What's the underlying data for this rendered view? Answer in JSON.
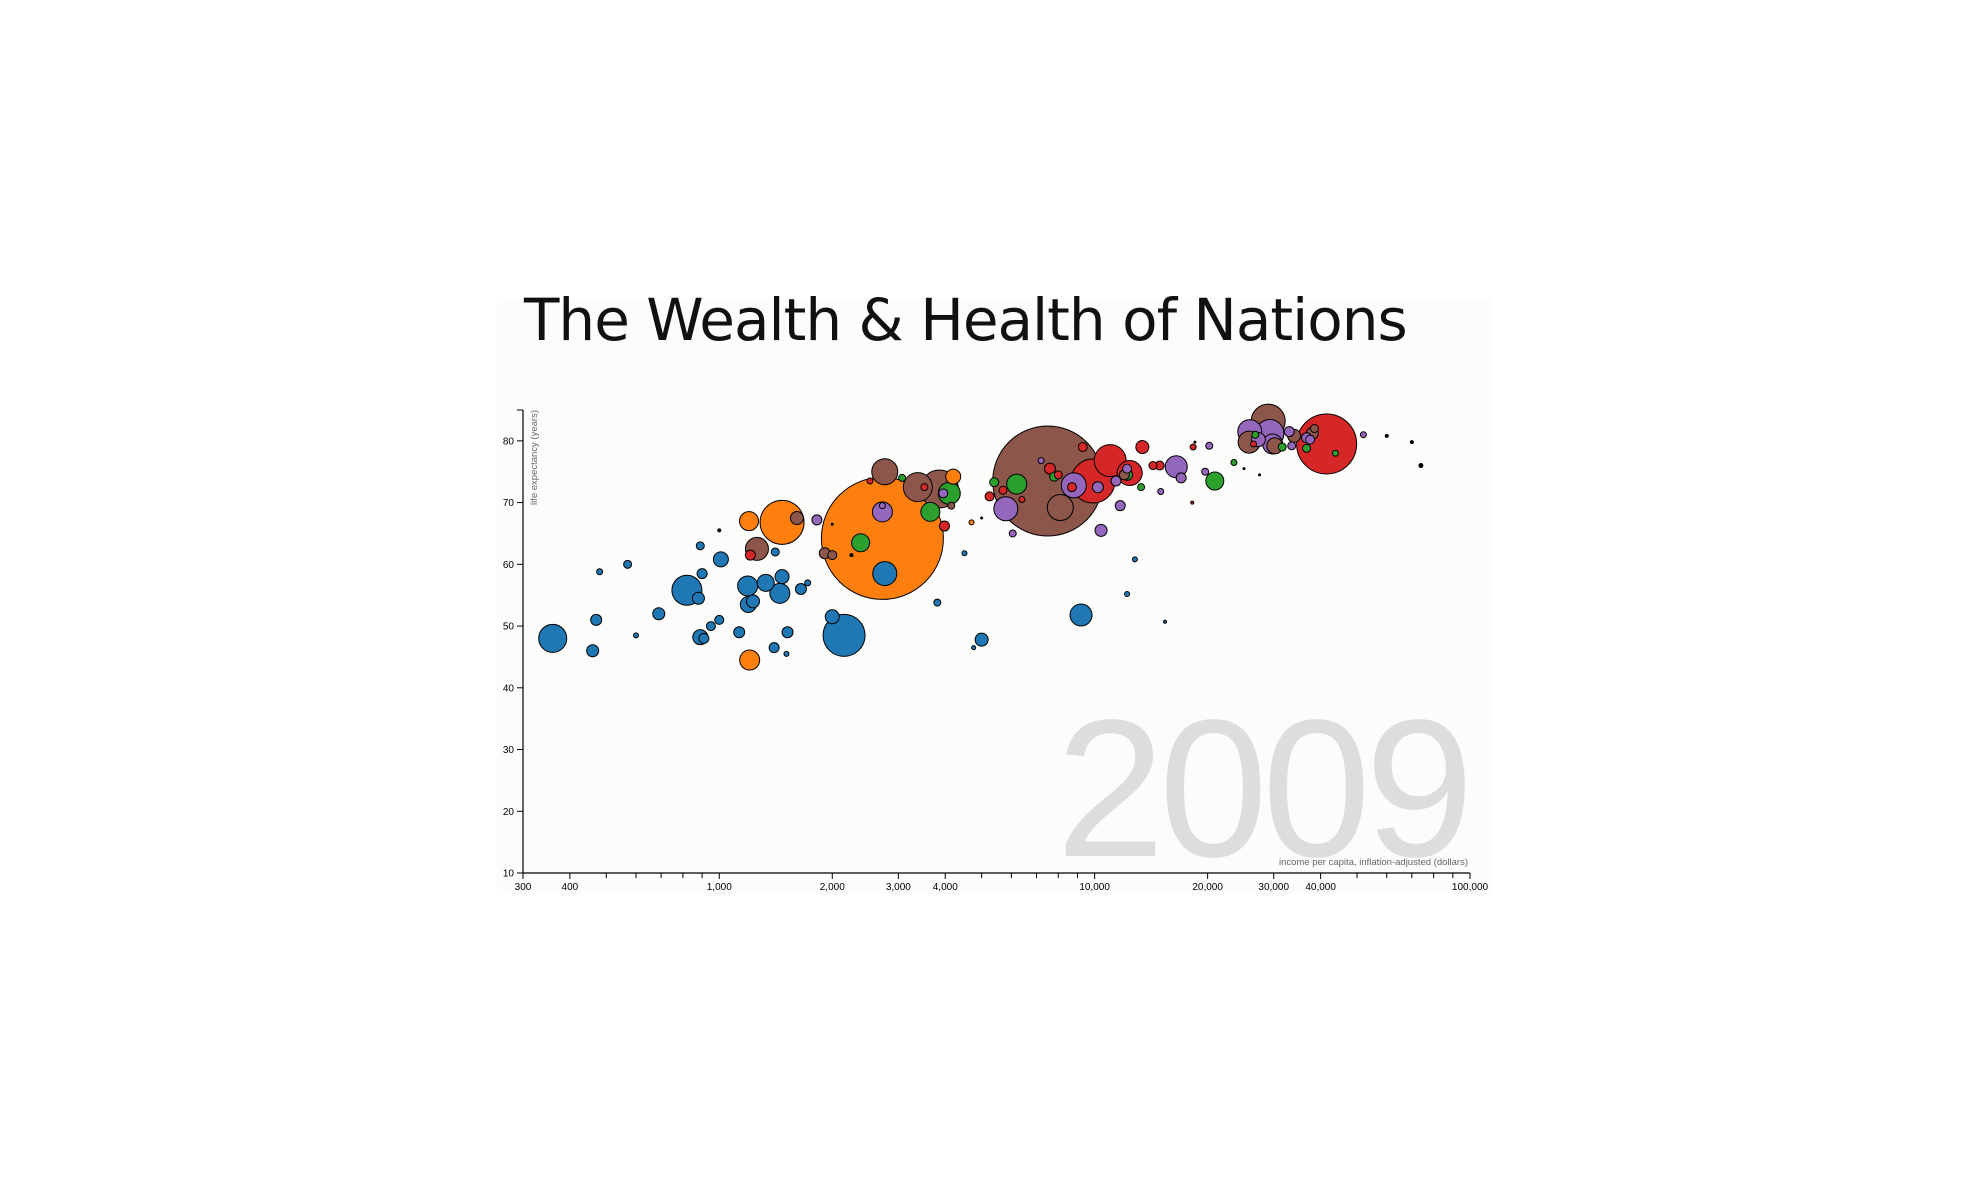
{
  "title": "The Wealth & Health of Nations",
  "chart_data": {
    "type": "scatter",
    "title": "The Wealth & Health of Nations",
    "xlabel": "income per capita, inflation-adjusted (dollars)",
    "ylabel": "life expectancy (years)",
    "x_scale": "log",
    "xlim": [
      300,
      100000
    ],
    "ylim": [
      10,
      85
    ],
    "year": "2009",
    "x_ticks": [
      300,
      400,
      1000,
      2000,
      3000,
      4000,
      10000,
      20000,
      30000,
      40000,
      100000
    ],
    "x_tick_labels": [
      "300",
      "400",
      "1,000",
      "2,000",
      "3,000",
      "4,000",
      "10,000",
      "20,000",
      "30,000",
      "40,000",
      "100,000"
    ],
    "y_ticks": [
      10,
      20,
      30,
      40,
      50,
      60,
      70,
      80
    ],
    "y_tick_labels": [
      "10",
      "20",
      "30",
      "40",
      "50",
      "60",
      "70",
      "80"
    ],
    "grid": false,
    "legend": "none",
    "colors": {
      "sub_saharan_africa": "#1f77b4",
      "south_asia": "#ff7f0e",
      "middle_east_north_africa": "#2ca02c",
      "america": "#d62728",
      "europe_central_asia": "#9467bd",
      "east_asia_pacific": "#8c564b"
    },
    "series": [
      {
        "color": "#1f77b4",
        "points": [
          {
            "x": 360,
            "y": 48,
            "r": 14
          },
          {
            "x": 460,
            "y": 46,
            "r": 6
          },
          {
            "x": 470,
            "y": 51,
            "r": 5.5
          },
          {
            "x": 480,
            "y": 58.8,
            "r": 3
          },
          {
            "x": 570,
            "y": 60,
            "r": 4
          },
          {
            "x": 600,
            "y": 48.5,
            "r": 2.5
          },
          {
            "x": 690,
            "y": 52,
            "r": 6
          },
          {
            "x": 820,
            "y": 55.8,
            "r": 15
          },
          {
            "x": 880,
            "y": 54.5,
            "r": 6
          },
          {
            "x": 890,
            "y": 63,
            "r": 4
          },
          {
            "x": 900,
            "y": 58.5,
            "r": 5
          },
          {
            "x": 890,
            "y": 48.2,
            "r": 7.5
          },
          {
            "x": 910,
            "y": 48,
            "r": 5
          },
          {
            "x": 950,
            "y": 50,
            "r": 4.5
          },
          {
            "x": 1000,
            "y": 51,
            "r": 4.5
          },
          {
            "x": 1010,
            "y": 60.8,
            "r": 7.5
          },
          {
            "x": 1130,
            "y": 49,
            "r": 5.5
          },
          {
            "x": 1190,
            "y": 56.5,
            "r": 10
          },
          {
            "x": 1195,
            "y": 53.5,
            "r": 8
          },
          {
            "x": 1230,
            "y": 54,
            "r": 6.5
          },
          {
            "x": 1330,
            "y": 57,
            "r": 8.5
          },
          {
            "x": 1400,
            "y": 46.5,
            "r": 5
          },
          {
            "x": 1410,
            "y": 62,
            "r": 4
          },
          {
            "x": 1450,
            "y": 55.3,
            "r": 10
          },
          {
            "x": 1470,
            "y": 58,
            "r": 7
          },
          {
            "x": 1510,
            "y": 45.5,
            "r": 2.5
          },
          {
            "x": 1520,
            "y": 49,
            "r": 5.5
          },
          {
            "x": 1650,
            "y": 56,
            "r": 5.5
          },
          {
            "x": 1720,
            "y": 57,
            "r": 3
          },
          {
            "x": 2000,
            "y": 51.5,
            "r": 7
          },
          {
            "x": 2150,
            "y": 48.5,
            "r": 21
          },
          {
            "x": 2760,
            "y": 58.5,
            "r": 12
          },
          {
            "x": 3810,
            "y": 53.8,
            "r": 3.5
          },
          {
            "x": 4500,
            "y": 61.8,
            "r": 2.5
          },
          {
            "x": 4760,
            "y": 46.5,
            "r": 2
          },
          {
            "x": 5000,
            "y": 47.8,
            "r": 6.5
          },
          {
            "x": 9200,
            "y": 51.8,
            "r": 11
          },
          {
            "x": 12200,
            "y": 55.2,
            "r": 2.5
          },
          {
            "x": 12800,
            "y": 60.8,
            "r": 2.5
          },
          {
            "x": 15400,
            "y": 50.7,
            "r": 1.5
          }
        ]
      },
      {
        "color": "#ff7f0e",
        "points": [
          {
            "x": 1200,
            "y": 67,
            "r": 9.5
          },
          {
            "x": 1205,
            "y": 44.5,
            "r": 10
          },
          {
            "x": 1470,
            "y": 66.8,
            "r": 22
          },
          {
            "x": 2720,
            "y": 64.2,
            "r": 61
          },
          {
            "x": 4200,
            "y": 74.2,
            "r": 7.5
          },
          {
            "x": 4700,
            "y": 66.8,
            "r": 2.5
          }
        ]
      },
      {
        "color": "#2ca02c",
        "points": [
          {
            "x": 2380,
            "y": 63.5,
            "r": 9
          },
          {
            "x": 3070,
            "y": 74,
            "r": 3.5
          },
          {
            "x": 3650,
            "y": 68.5,
            "r": 9.5
          },
          {
            "x": 4100,
            "y": 71.5,
            "r": 11
          },
          {
            "x": 5400,
            "y": 73.3,
            "r": 4.5
          },
          {
            "x": 6200,
            "y": 73,
            "r": 10
          },
          {
            "x": 7800,
            "y": 74.2,
            "r": 4.5
          },
          {
            "x": 12200,
            "y": 74.5,
            "r": 5.5
          },
          {
            "x": 13300,
            "y": 72.5,
            "r": 3.5
          },
          {
            "x": 20900,
            "y": 73.5,
            "r": 9
          },
          {
            "x": 23500,
            "y": 76.5,
            "r": 3
          },
          {
            "x": 26800,
            "y": 81,
            "r": 3.5
          },
          {
            "x": 31600,
            "y": 79,
            "r": 4
          },
          {
            "x": 36700,
            "y": 78.8,
            "r": 4
          },
          {
            "x": 43800,
            "y": 78,
            "r": 3
          }
        ]
      },
      {
        "color": "#d62728",
        "points": [
          {
            "x": 1210,
            "y": 61.5,
            "r": 5
          },
          {
            "x": 2520,
            "y": 73.5,
            "r": 3
          },
          {
            "x": 3520,
            "y": 72.5,
            "r": 3.5
          },
          {
            "x": 3980,
            "y": 66.2,
            "r": 5
          },
          {
            "x": 5250,
            "y": 71,
            "r": 4.5
          },
          {
            "x": 5700,
            "y": 72,
            "r": 4
          },
          {
            "x": 6400,
            "y": 70.5,
            "r": 3
          },
          {
            "x": 7600,
            "y": 75.5,
            "r": 5.5
          },
          {
            "x": 8000,
            "y": 74.5,
            "r": 4
          },
          {
            "x": 8700,
            "y": 72.5,
            "r": 4.5
          },
          {
            "x": 9300,
            "y": 79,
            "r": 4.5
          },
          {
            "x": 9900,
            "y": 73.5,
            "r": 22
          },
          {
            "x": 11000,
            "y": 76.8,
            "r": 16
          },
          {
            "x": 12400,
            "y": 74.8,
            "r": 12.5
          },
          {
            "x": 13400,
            "y": 79,
            "r": 6.5
          },
          {
            "x": 14300,
            "y": 76,
            "r": 4
          },
          {
            "x": 14900,
            "y": 76,
            "r": 4.5
          },
          {
            "x": 18300,
            "y": 79,
            "r": 3
          },
          {
            "x": 18200,
            "y": 70,
            "r": 1.5
          },
          {
            "x": 26500,
            "y": 79.5,
            "r": 3
          },
          {
            "x": 41500,
            "y": 79.5,
            "r": 30
          }
        ]
      },
      {
        "color": "#9467bd",
        "points": [
          {
            "x": 1820,
            "y": 67.2,
            "r": 5
          },
          {
            "x": 2720,
            "y": 68.5,
            "r": 10
          },
          {
            "x": 2720,
            "y": 69.5,
            "r": 3
          },
          {
            "x": 3950,
            "y": 71.5,
            "r": 4.5
          },
          {
            "x": 5800,
            "y": 69,
            "r": 12
          },
          {
            "x": 6050,
            "y": 65,
            "r": 3.5
          },
          {
            "x": 7200,
            "y": 76.8,
            "r": 3
          },
          {
            "x": 8800,
            "y": 72.8,
            "r": 12.5
          },
          {
            "x": 10200,
            "y": 72.5,
            "r": 5.5
          },
          {
            "x": 10400,
            "y": 65.5,
            "r": 6
          },
          {
            "x": 11400,
            "y": 73.5,
            "r": 5
          },
          {
            "x": 11700,
            "y": 69.5,
            "r": 5
          },
          {
            "x": 12200,
            "y": 75.5,
            "r": 4.5
          },
          {
            "x": 15000,
            "y": 71.8,
            "r": 3
          },
          {
            "x": 16500,
            "y": 75.8,
            "r": 11
          },
          {
            "x": 17000,
            "y": 74,
            "r": 5
          },
          {
            "x": 19700,
            "y": 75,
            "r": 3.5
          },
          {
            "x": 20200,
            "y": 79.2,
            "r": 3.5
          },
          {
            "x": 25900,
            "y": 81.5,
            "r": 12
          },
          {
            "x": 27300,
            "y": 80.2,
            "r": 7
          },
          {
            "x": 29300,
            "y": 81.2,
            "r": 14
          },
          {
            "x": 29800,
            "y": 79.5,
            "r": 10
          },
          {
            "x": 33000,
            "y": 81.5,
            "r": 5
          },
          {
            "x": 33500,
            "y": 79.2,
            "r": 4
          },
          {
            "x": 36700,
            "y": 80.5,
            "r": 5
          },
          {
            "x": 37500,
            "y": 80.2,
            "r": 4.5
          },
          {
            "x": 52000,
            "y": 81,
            "r": 3
          }
        ]
      },
      {
        "color": "#8c564b",
        "points": [
          {
            "x": 1260,
            "y": 62.5,
            "r": 11.5
          },
          {
            "x": 1610,
            "y": 67.5,
            "r": 6.5
          },
          {
            "x": 1910,
            "y": 61.8,
            "r": 5.5
          },
          {
            "x": 2000,
            "y": 61.5,
            "r": 4.5
          },
          {
            "x": 2760,
            "y": 75,
            "r": 13
          },
          {
            "x": 3380,
            "y": 72.5,
            "r": 14.5
          },
          {
            "x": 3860,
            "y": 72.2,
            "r": 19
          },
          {
            "x": 4150,
            "y": 69.5,
            "r": 3.5
          },
          {
            "x": 7500,
            "y": 73.5,
            "r": 55
          },
          {
            "x": 8100,
            "y": 69.2,
            "r": 13
          },
          {
            "x": 12000,
            "y": 74.5,
            "r": 5
          },
          {
            "x": 25800,
            "y": 79.8,
            "r": 11
          },
          {
            "x": 29000,
            "y": 83.2,
            "r": 17
          },
          {
            "x": 30200,
            "y": 79.2,
            "r": 8
          },
          {
            "x": 34000,
            "y": 80.8,
            "r": 6.5
          },
          {
            "x": 38000,
            "y": 81.2,
            "r": 6
          },
          {
            "x": 38500,
            "y": 82,
            "r": 4
          }
        ]
      },
      {
        "color": "#000000",
        "points": [
          {
            "x": 1000,
            "y": 65.5,
            "r": 1.5
          },
          {
            "x": 2000,
            "y": 66.5,
            "r": 1
          },
          {
            "x": 2250,
            "y": 61.5,
            "r": 1.5
          },
          {
            "x": 5000,
            "y": 67.5,
            "r": 1
          },
          {
            "x": 18500,
            "y": 79.8,
            "r": 1
          },
          {
            "x": 25000,
            "y": 75.5,
            "r": 1
          },
          {
            "x": 27500,
            "y": 74.5,
            "r": 1
          },
          {
            "x": 60000,
            "y": 80.8,
            "r": 1.5
          },
          {
            "x": 70000,
            "y": 79.8,
            "r": 1.5
          },
          {
            "x": 74000,
            "y": 76,
            "r": 2
          }
        ]
      }
    ]
  }
}
